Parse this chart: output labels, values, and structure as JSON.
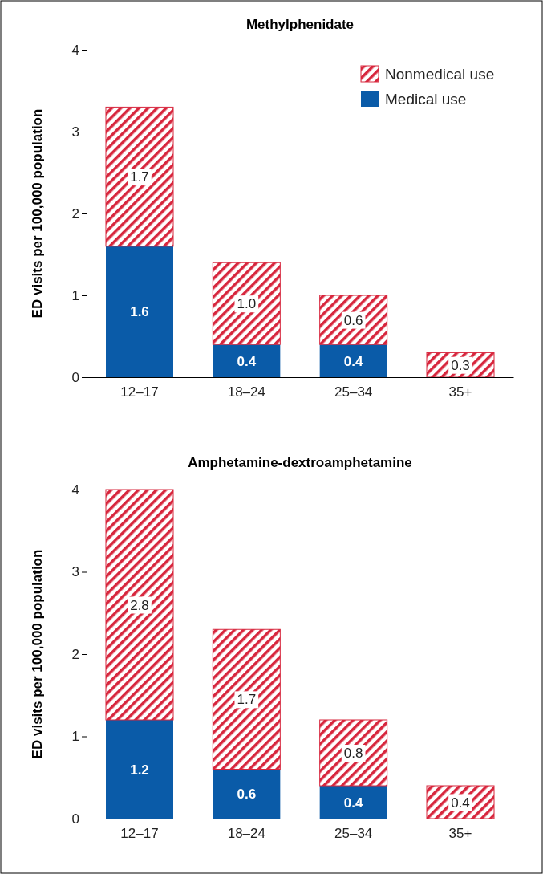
{
  "chart_data": [
    {
      "type": "bar",
      "title": "Methylphenidate",
      "ylabel": "ED visits per 100,000 population",
      "categories": [
        "12–17",
        "18–24",
        "25–34",
        "35+"
      ],
      "stacked": true,
      "ylim": [
        0,
        4
      ],
      "yticks": [
        0,
        1,
        2,
        3,
        4
      ],
      "legend": "top right",
      "series": [
        {
          "name": "Medical use",
          "color": "#0a5ba8",
          "values": [
            1.6,
            0.4,
            0.4,
            0
          ],
          "value_labels": [
            "1.6",
            "0.4",
            "0.4",
            null
          ]
        },
        {
          "name": "Nonmedical use",
          "color": "#d7263d",
          "values": [
            1.7,
            1.0,
            0.6,
            0.3
          ],
          "value_labels": [
            "1.7",
            "1.0",
            "0.6",
            "0.3"
          ]
        }
      ]
    },
    {
      "type": "bar",
      "title": "Amphetamine-dextroamphetamine",
      "ylabel": "ED visits per 100,000 population",
      "categories": [
        "12–17",
        "18–24",
        "25–34",
        "35+"
      ],
      "stacked": true,
      "ylim": [
        0,
        4
      ],
      "yticks": [
        0,
        1,
        2,
        3,
        4
      ],
      "legend": false,
      "series": [
        {
          "color": "#0a5ba8",
          "values": [
            1.2,
            0.6,
            0.4,
            0
          ],
          "value_labels": [
            "1.2",
            "0.6",
            "0.4",
            null
          ]
        },
        {
          "color": "#d7263d",
          "values": [
            2.8,
            1.7,
            0.8,
            0.4
          ],
          "value_labels": [
            "2.8",
            "1.7",
            "0.8",
            "0.4"
          ]
        }
      ]
    }
  ]
}
